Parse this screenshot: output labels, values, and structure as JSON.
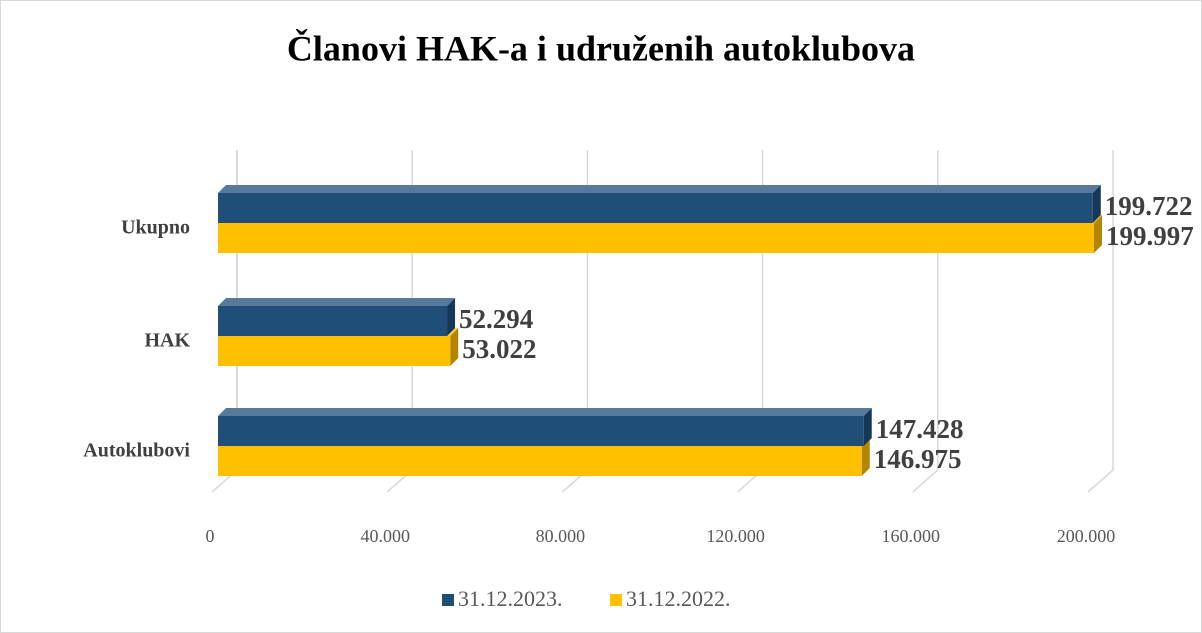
{
  "chart_data": {
    "type": "bar",
    "orientation": "horizontal",
    "title": "Članovi HAK-a i udruženih autoklubova",
    "categories": [
      "Ukupno",
      "HAK",
      "Autoklubovi"
    ],
    "series": [
      {
        "name": "31.12.2023.",
        "color": "#1f4e79",
        "values": [
          199722,
          52294,
          147428
        ],
        "value_labels": [
          "199.722",
          "52.294",
          "147.428"
        ]
      },
      {
        "name": "31.12.2022.",
        "color": "#ffc000",
        "values": [
          199997,
          53022,
          146975
        ],
        "value_labels": [
          "199.997",
          "53.022",
          "146.975"
        ]
      }
    ],
    "xlim": [
      0,
      200000
    ],
    "xticks": [
      0,
      {
        "value": 40000,
        "label": "40.000"
      },
      {
        "value": 80000,
        "label": "80.000"
      },
      {
        "value": 120000,
        "label": "120.000"
      },
      {
        "value": 160000,
        "label": "160.000"
      },
      {
        "value": 200000,
        "label": "200.000"
      }
    ],
    "grid": true,
    "legend": "bottom"
  }
}
